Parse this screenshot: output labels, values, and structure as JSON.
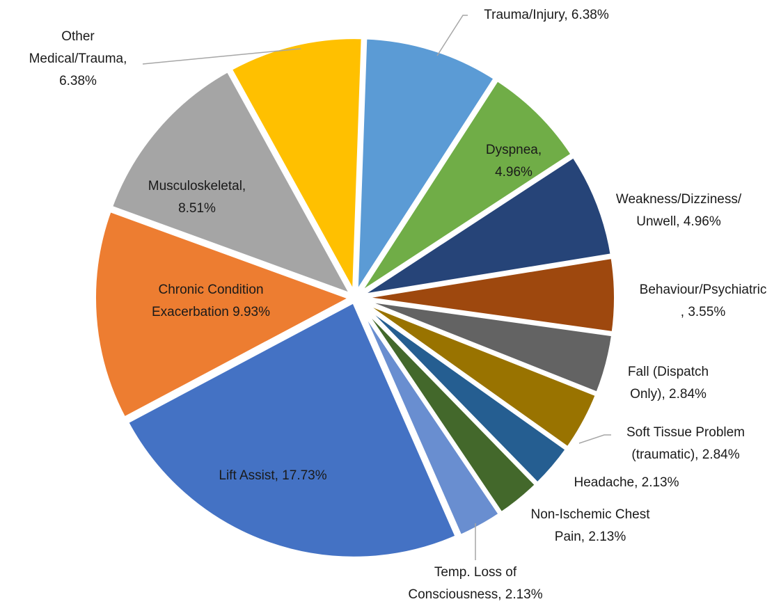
{
  "chart_data": {
    "type": "pie",
    "categories": [
      "Trauma/Injury, 6.38%",
      "Dyspnea,\n4.96%",
      "Weakness/Dizziness/\nUnwell, 4.96%",
      "Behaviour/Psychiatric\n, 3.55%",
      "Fall (Dispatch\nOnly), 2.84%",
      "Soft Tissue Problem\n(traumatic), 2.84%",
      "Headache, 2.13%",
      "Non-Ischemic Chest\nPain, 2.13%",
      "Temp. Loss of\nConsciousness, 2.13%",
      "Lift Assist, 17.73%",
      "Chronic Condition\nExacerbation 9.93%",
      "Musculoskeletal,\n8.51%",
      "Other\nMedical/Trauma,\n6.38%"
    ],
    "values": [
      6.38,
      4.96,
      4.96,
      3.55,
      2.84,
      2.84,
      2.13,
      2.13,
      2.13,
      17.73,
      9.93,
      8.51,
      6.38
    ],
    "colors": [
      "#5b9bd5",
      "#70ad47",
      "#264478",
      "#9e480e",
      "#636363",
      "#997300",
      "#255e91",
      "#43682b",
      "#698ed0",
      "#4472c4",
      "#ed7d31",
      "#a5a5a5",
      "#ffc000"
    ]
  }
}
